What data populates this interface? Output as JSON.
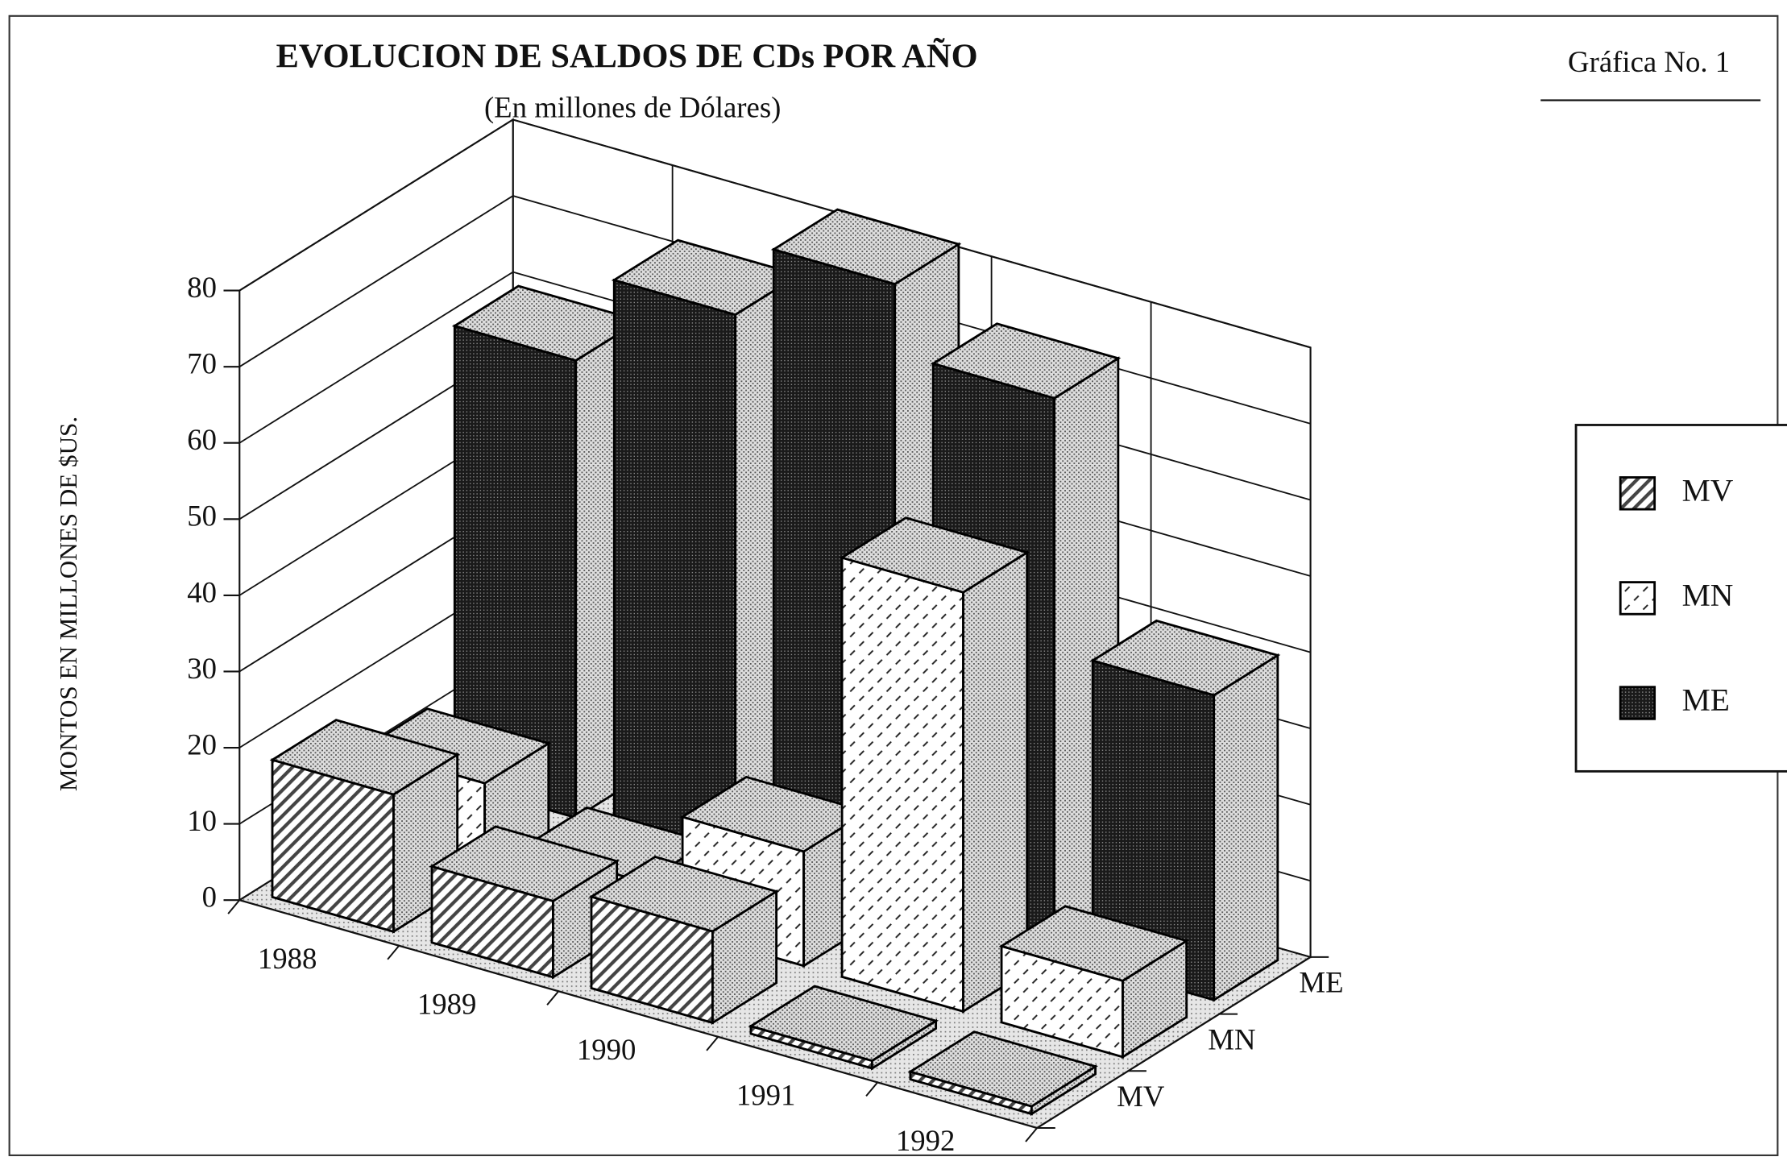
{
  "chart_data": {
    "type": "bar3d",
    "title": "EVOLUCION DE SALDOS DE CDs POR AÑO",
    "subtitle": "(En millones de Dólares)",
    "figure_label": "Gráfica No. 1",
    "y_label": "MONTOS EN MILLONES DE $US.",
    "categories": [
      "1988",
      "1989",
      "1990",
      "1991",
      "1992"
    ],
    "series": [
      {
        "name": "MV",
        "color": "#444444",
        "values": [
          18,
          10,
          12,
          1,
          1
        ]
      },
      {
        "name": "MN",
        "color": "#ffffff",
        "values": [
          12,
          5,
          15,
          55,
          10
        ]
      },
      {
        "name": "ME",
        "color": "#1a1a1a",
        "values": [
          60,
          72,
          82,
          73,
          40
        ]
      }
    ],
    "ylim": [
      0,
      80
    ],
    "yticks": [
      0,
      10,
      20,
      30,
      40,
      50,
      60,
      70,
      80
    ],
    "grid": true,
    "legend": "right"
  }
}
